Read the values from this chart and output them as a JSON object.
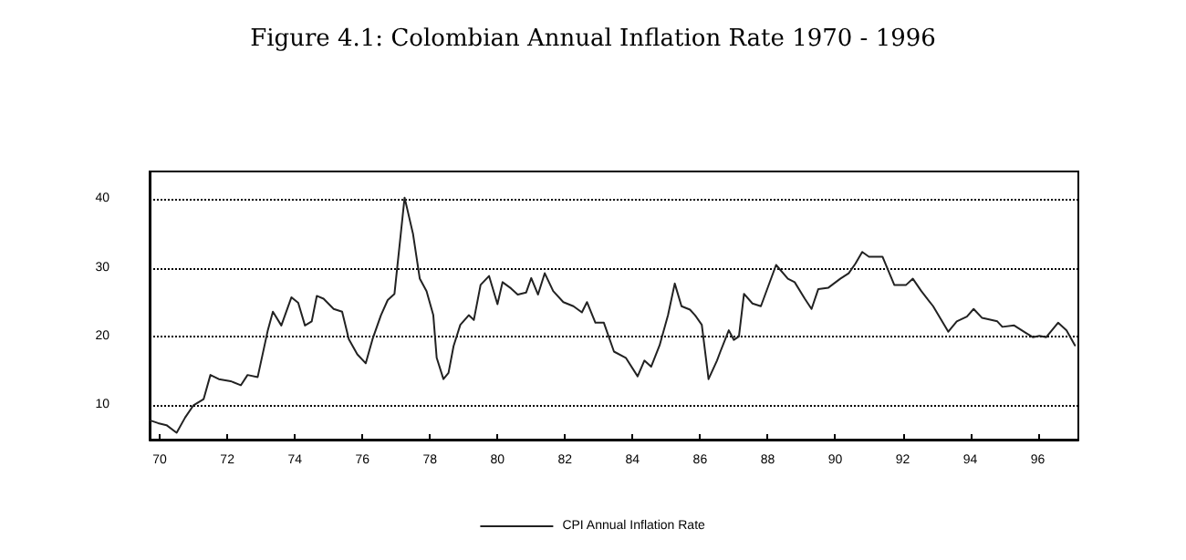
{
  "chart_data": {
    "type": "line",
    "title": "Figure 4.1: Colombian Annual Inflation Rate 1970 - 1996",
    "xlim": [
      69.7,
      97.2
    ],
    "xticks": [
      70,
      72,
      74,
      76,
      78,
      80,
      82,
      84,
      86,
      88,
      90,
      92,
      94,
      96
    ],
    "ylim": [
      5,
      44
    ],
    "yticks": [
      10,
      20,
      30,
      40
    ],
    "grid": "y",
    "legend": "bottom",
    "marker": "none",
    "line_style": "solid",
    "series": [
      {
        "name": "CPI Annual Inflation Rate",
        "color": "#222222",
        "x": [
          69.71,
          69.95,
          70.2,
          70.5,
          70.75,
          71.0,
          71.3,
          71.5,
          71.75,
          72.1,
          72.4,
          72.6,
          72.9,
          73.2,
          73.35,
          73.6,
          73.9,
          74.1,
          74.3,
          74.5,
          74.65,
          74.85,
          75.15,
          75.4,
          75.6,
          75.85,
          76.1,
          76.3,
          76.55,
          76.75,
          76.95,
          77.25,
          77.5,
          77.7,
          77.9,
          78.1,
          78.2,
          78.4,
          78.55,
          78.7,
          78.9,
          79.15,
          79.3,
          79.5,
          79.75,
          80.0,
          80.15,
          80.4,
          80.6,
          80.85,
          81.0,
          81.2,
          81.4,
          81.65,
          81.95,
          82.25,
          82.5,
          82.65,
          82.9,
          83.15,
          83.45,
          83.8,
          84.15,
          84.35,
          84.55,
          84.8,
          85.05,
          85.25,
          85.45,
          85.7,
          85.85,
          86.05,
          86.25,
          86.5,
          86.6,
          86.85,
          87.0,
          87.15,
          87.3,
          87.55,
          87.8,
          88.25,
          88.6,
          88.8,
          89.1,
          89.3,
          89.5,
          89.8,
          90.15,
          90.4,
          90.6,
          90.8,
          91.0,
          91.4,
          91.75,
          92.1,
          92.3,
          92.55,
          92.9,
          93.35,
          93.6,
          93.9,
          94.1,
          94.35,
          94.8,
          94.95,
          95.3,
          95.65,
          95.85,
          96.05,
          96.25,
          96.6,
          96.85,
          97.1
        ],
        "values": [
          7.8,
          7.4,
          7.1,
          6.0,
          8.2,
          10.0,
          10.9,
          14.4,
          13.8,
          13.5,
          12.9,
          14.4,
          14.1,
          20.9,
          23.6,
          21.6,
          25.7,
          24.9,
          21.6,
          22.2,
          25.9,
          25.5,
          24.0,
          23.6,
          19.6,
          17.4,
          16.1,
          19.6,
          23.1,
          25.3,
          26.2,
          40.2,
          34.9,
          28.4,
          26.6,
          23.1,
          16.9,
          13.8,
          14.7,
          18.6,
          21.7,
          23.1,
          22.4,
          27.5,
          28.8,
          24.7,
          27.9,
          27.0,
          26.1,
          26.4,
          28.5,
          26.1,
          29.2,
          26.6,
          25.0,
          24.4,
          23.5,
          25.0,
          22.0,
          22.0,
          17.8,
          16.9,
          14.2,
          16.5,
          15.6,
          18.7,
          23.1,
          27.7,
          24.4,
          23.9,
          23.1,
          21.7,
          13.8,
          16.5,
          17.8,
          20.9,
          19.5,
          20.0,
          26.2,
          24.8,
          24.4,
          30.4,
          28.4,
          27.9,
          25.5,
          24.0,
          26.9,
          27.1,
          28.4,
          29.2,
          30.6,
          32.3,
          31.6,
          31.6,
          27.5,
          27.5,
          28.4,
          26.6,
          24.4,
          20.7,
          22.2,
          22.9,
          24.0,
          22.7,
          22.2,
          21.4,
          21.6,
          20.5,
          19.9,
          20.1,
          19.9,
          22.0,
          20.9,
          18.7
        ]
      }
    ]
  }
}
